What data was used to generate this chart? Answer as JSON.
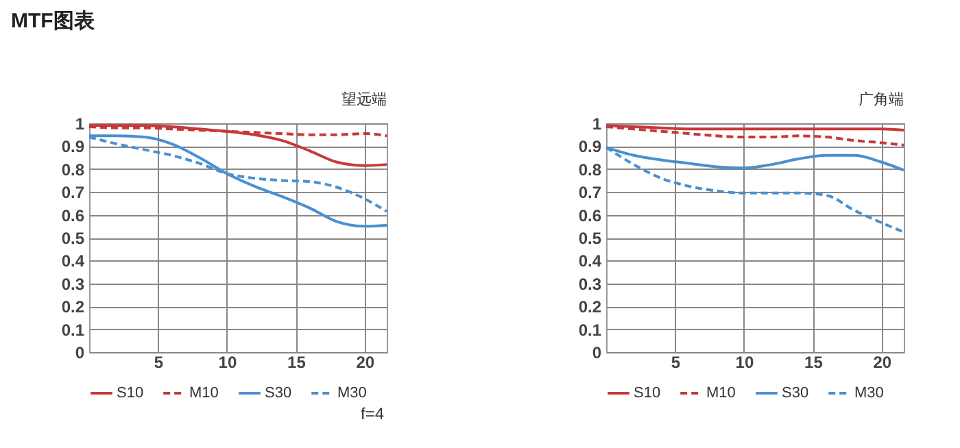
{
  "chart_data": [
    {
      "type": "line",
      "title": "MTF图表",
      "subtitle": "望远端",
      "annotations": [
        "f=4"
      ],
      "xlim": [
        0,
        21.6
      ],
      "xticks": [
        5,
        10,
        15,
        20
      ],
      "ylim": [
        0,
        1
      ],
      "yticks": [
        0,
        0.1,
        0.2,
        0.3,
        0.4,
        0.5,
        0.6,
        0.7,
        0.8,
        0.9,
        1
      ],
      "grid": true,
      "legend": "bottom",
      "x": [
        0,
        2,
        4,
        6,
        8,
        10,
        12,
        14,
        16,
        18,
        20,
        21.6
      ],
      "series": [
        {
          "name": "S10",
          "color": "#c8383a",
          "line_style": "solid",
          "values": [
            0.99,
            0.99,
            0.99,
            0.985,
            0.975,
            0.965,
            0.95,
            0.925,
            0.88,
            0.83,
            0.815,
            0.82
          ]
        },
        {
          "name": "M10",
          "color": "#c8383a",
          "line_style": "dashed",
          "values": [
            0.985,
            0.98,
            0.98,
            0.975,
            0.97,
            0.965,
            0.96,
            0.955,
            0.95,
            0.95,
            0.955,
            0.945
          ]
        },
        {
          "name": "S30",
          "color": "#4a90d0",
          "line_style": "solid",
          "values": [
            0.945,
            0.945,
            0.94,
            0.91,
            0.85,
            0.78,
            0.725,
            0.68,
            0.63,
            0.57,
            0.55,
            0.555
          ]
        },
        {
          "name": "M30",
          "color": "#4a90d0",
          "line_style": "dashed",
          "values": [
            0.94,
            0.91,
            0.885,
            0.86,
            0.825,
            0.78,
            0.76,
            0.75,
            0.745,
            0.72,
            0.67,
            0.615
          ]
        }
      ]
    },
    {
      "type": "line",
      "subtitle": "广角端",
      "xlim": [
        0,
        21.6
      ],
      "xticks": [
        5,
        10,
        15,
        20
      ],
      "ylim": [
        0,
        1
      ],
      "yticks": [
        0,
        0.1,
        0.2,
        0.3,
        0.4,
        0.5,
        0.6,
        0.7,
        0.8,
        0.9,
        1
      ],
      "grid": true,
      "legend": "bottom",
      "x": [
        0,
        2,
        4,
        6,
        8,
        10,
        12,
        14,
        16,
        18,
        20,
        21.6
      ],
      "series": [
        {
          "name": "S10",
          "color": "#c8383a",
          "line_style": "solid",
          "values": [
            0.99,
            0.985,
            0.98,
            0.975,
            0.975,
            0.975,
            0.975,
            0.975,
            0.975,
            0.975,
            0.975,
            0.97
          ]
        },
        {
          "name": "M10",
          "color": "#c8383a",
          "line_style": "dashed",
          "values": [
            0.985,
            0.975,
            0.965,
            0.955,
            0.945,
            0.94,
            0.94,
            0.945,
            0.94,
            0.925,
            0.915,
            0.905
          ]
        },
        {
          "name": "S30",
          "color": "#4a90d0",
          "line_style": "solid",
          "values": [
            0.895,
            0.86,
            0.84,
            0.825,
            0.81,
            0.805,
            0.82,
            0.845,
            0.86,
            0.86,
            0.83,
            0.795
          ]
        },
        {
          "name": "M30",
          "color": "#4a90d0",
          "line_style": "dashed",
          "values": [
            0.895,
            0.82,
            0.76,
            0.725,
            0.705,
            0.695,
            0.695,
            0.695,
            0.685,
            0.62,
            0.565,
            0.525
          ]
        }
      ]
    }
  ]
}
